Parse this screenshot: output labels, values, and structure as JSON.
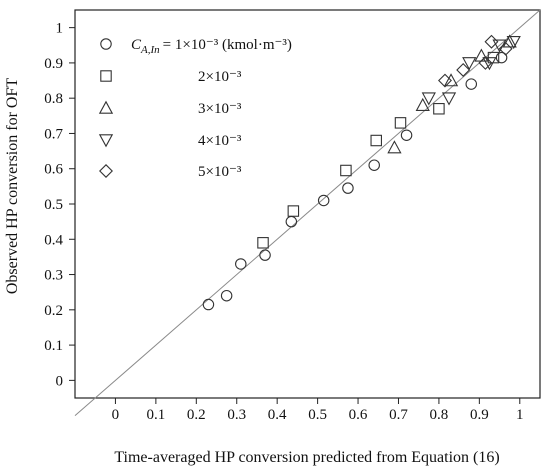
{
  "chart_data": {
    "type": "scatter",
    "xlabel": "Time-averaged HP conversion predicted from Equation (16)",
    "ylabel": "Observed HP conversion for OFT",
    "xlim": [
      -0.1,
      1.05
    ],
    "ylim": [
      -0.05,
      1.05
    ],
    "x_ticks": [
      "0",
      "0.1",
      "0.2",
      "0.3",
      "0.4",
      "0.5",
      "0.6",
      "0.7",
      "0.8",
      "0.9",
      "1"
    ],
    "y_ticks": [
      "0",
      "0.1",
      "0.2",
      "0.3",
      "0.4",
      "0.5",
      "0.6",
      "0.7",
      "0.8",
      "0.9",
      "1"
    ],
    "grid": false,
    "reference_line": {
      "type": "parity",
      "from": [
        -0.1,
        -0.1
      ],
      "to": [
        1.05,
        1.05
      ]
    },
    "legend_position": "top-left",
    "series": [
      {
        "name": "= 1×10⁻³ (kmol·m⁻³)",
        "name_prefix": "C",
        "name_subscript": "A,In",
        "marker": "circle",
        "points": [
          [
            0.23,
            0.215
          ],
          [
            0.275,
            0.24
          ],
          [
            0.31,
            0.33
          ],
          [
            0.37,
            0.355
          ],
          [
            0.435,
            0.45
          ],
          [
            0.515,
            0.51
          ],
          [
            0.575,
            0.545
          ],
          [
            0.64,
            0.61
          ],
          [
            0.72,
            0.695
          ],
          [
            0.88,
            0.84
          ],
          [
            0.955,
            0.915
          ]
        ]
      },
      {
        "name": "2×10⁻³",
        "marker": "square",
        "points": [
          [
            0.365,
            0.39
          ],
          [
            0.44,
            0.48
          ],
          [
            0.57,
            0.595
          ],
          [
            0.645,
            0.68
          ],
          [
            0.705,
            0.73
          ],
          [
            0.8,
            0.77
          ],
          [
            0.935,
            0.915
          ]
        ]
      },
      {
        "name": "3×10⁻³",
        "marker": "triangle-up",
        "points": [
          [
            0.69,
            0.66
          ],
          [
            0.76,
            0.78
          ],
          [
            0.83,
            0.85
          ],
          [
            0.905,
            0.92
          ],
          [
            0.975,
            0.96
          ]
        ]
      },
      {
        "name": "4×10⁻³",
        "marker": "triangle-down",
        "points": [
          [
            0.775,
            0.8
          ],
          [
            0.825,
            0.8
          ],
          [
            0.875,
            0.9
          ],
          [
            0.925,
            0.9
          ],
          [
            0.985,
            0.96
          ],
          [
            0.95,
            0.95
          ]
        ]
      },
      {
        "name": "5×10⁻³",
        "marker": "diamond",
        "points": [
          [
            0.815,
            0.85
          ],
          [
            0.86,
            0.88
          ],
          [
            0.915,
            0.9
          ],
          [
            0.93,
            0.96
          ],
          [
            0.965,
            0.94
          ]
        ]
      }
    ]
  }
}
